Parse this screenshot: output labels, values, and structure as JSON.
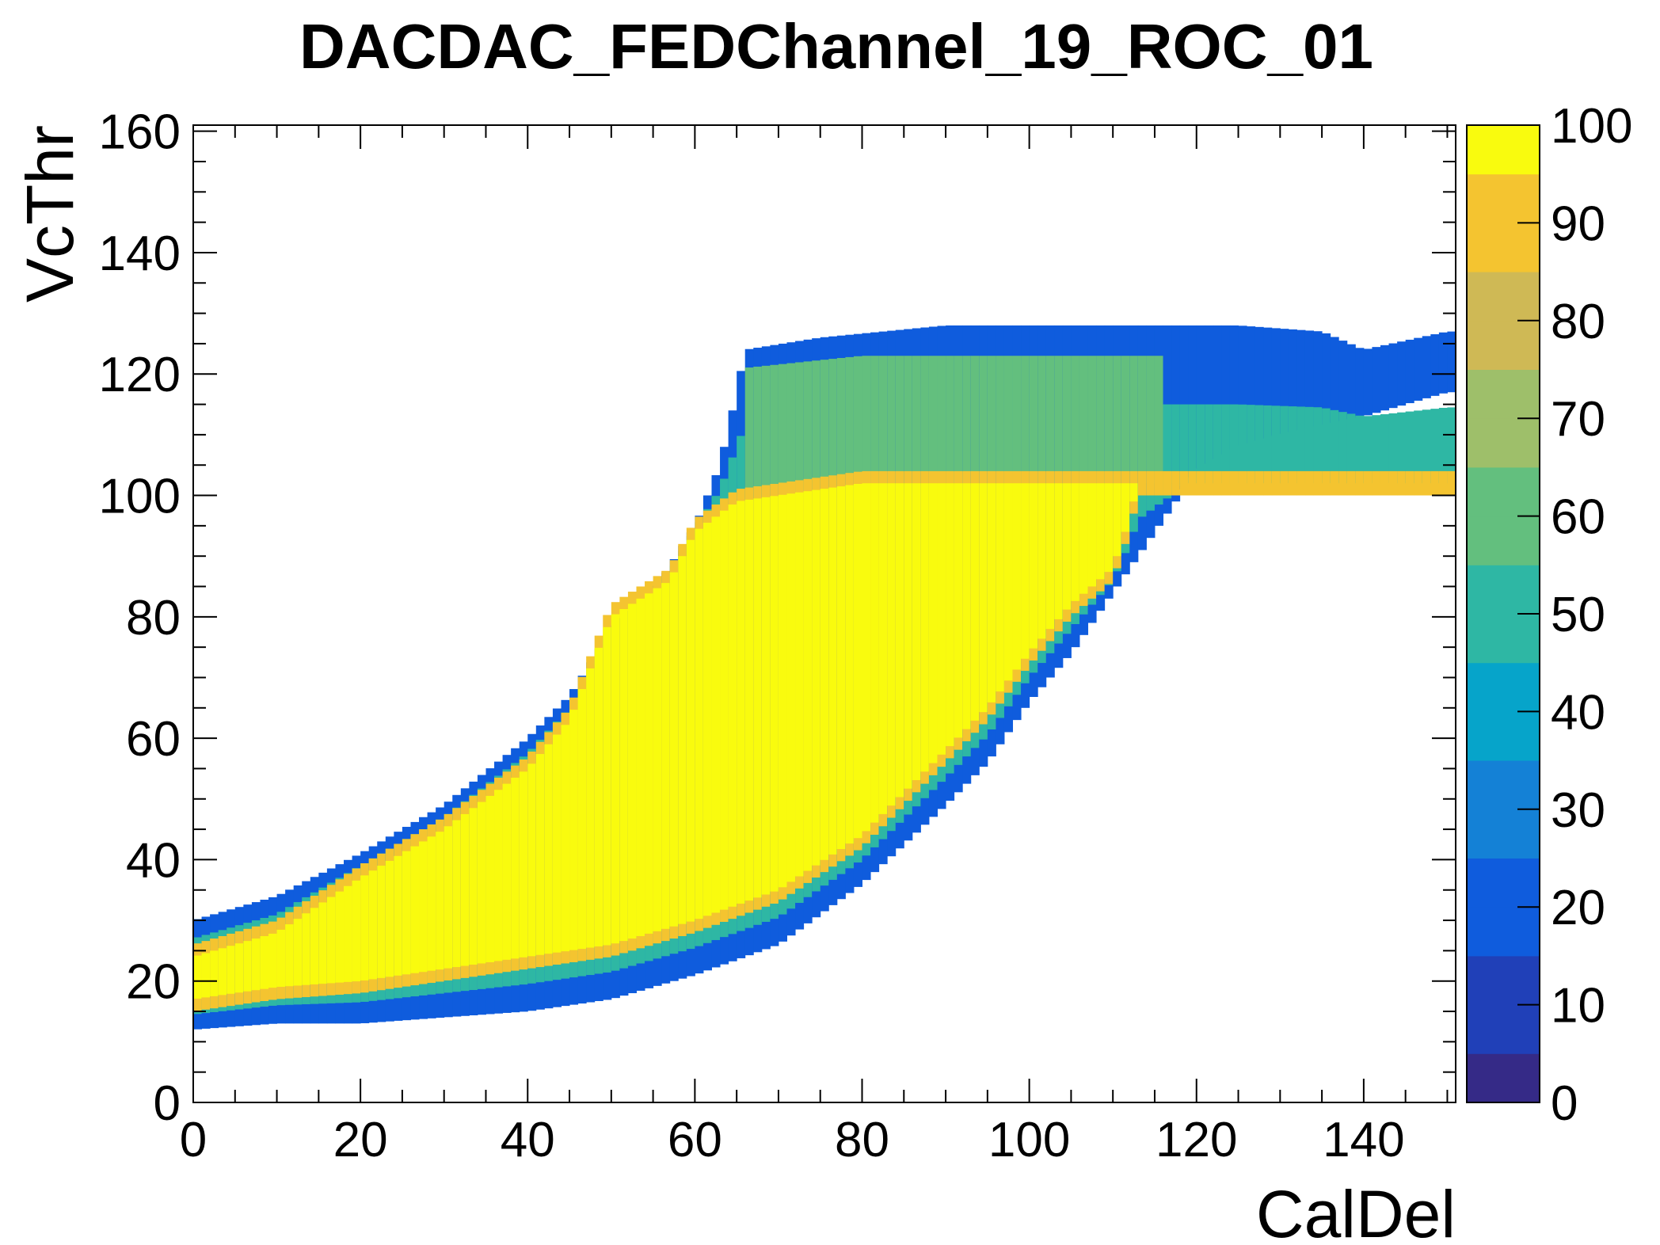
{
  "chart_data": {
    "type": "heatmap",
    "title": "DACDAC_FEDChannel_19_ROC_01",
    "xlabel": "CalDel",
    "ylabel": "VcThr",
    "xlim": [
      0,
      151
    ],
    "ylim": [
      0,
      161
    ],
    "x_ticks": [
      0,
      20,
      40,
      60,
      80,
      100,
      120,
      140
    ],
    "x_tick_labels": [
      "0",
      "20",
      "40",
      "60",
      "80",
      "100",
      "120",
      "140"
    ],
    "y_ticks": [
      0,
      20,
      40,
      60,
      80,
      100,
      120,
      140,
      160
    ],
    "y_tick_labels": [
      "0",
      "20",
      "40",
      "60",
      "80",
      "100",
      "120",
      "140",
      "160"
    ],
    "z_range": [
      0,
      100
    ],
    "z_ticks": [
      0,
      10,
      20,
      30,
      40,
      50,
      60,
      70,
      80,
      90,
      100
    ],
    "z_tick_labels": [
      "0",
      "10",
      "20",
      "30",
      "40",
      "50",
      "60",
      "70",
      "80",
      "90",
      "100"
    ],
    "grid": false,
    "colorbar": "right",
    "palette": [
      "#352a87",
      "#2040b8",
      "#0f5cdd",
      "#1481d6",
      "#06a4ca",
      "#2eb7a4",
      "#63bf7e",
      "#9ebf6a",
      "#cfb955",
      "#f4c430",
      "#f9fb0e"
    ],
    "regions": [
      {
        "name": "edge",
        "level": 18,
        "lower_edge": [
          [
            0,
            12
          ],
          [
            10,
            13
          ],
          [
            20,
            13
          ],
          [
            30,
            14
          ],
          [
            40,
            15
          ],
          [
            50,
            17
          ],
          [
            60,
            21
          ],
          [
            70,
            26
          ],
          [
            80,
            36
          ],
          [
            90,
            49
          ],
          [
            95,
            56
          ],
          [
            100,
            66
          ],
          [
            105,
            74
          ],
          [
            110,
            84
          ],
          [
            115,
            94
          ],
          [
            120,
            104
          ],
          [
            125,
            108
          ],
          [
            130,
            110
          ],
          [
            140,
            113
          ],
          [
            150,
            117
          ]
        ],
        "upper_edge": [
          [
            0,
            30
          ],
          [
            10,
            34
          ],
          [
            20,
            41
          ],
          [
            30,
            49
          ],
          [
            40,
            60
          ],
          [
            45,
            67
          ],
          [
            50,
            78
          ],
          [
            55,
            84
          ],
          [
            60,
            95
          ],
          [
            63,
            105
          ],
          [
            65,
            117
          ],
          [
            66,
            124
          ],
          [
            75,
            126
          ],
          [
            90,
            128
          ],
          [
            110,
            128
          ],
          [
            125,
            128
          ],
          [
            135,
            127
          ],
          [
            140,
            124
          ],
          [
            150,
            127
          ]
        ]
      },
      {
        "name": "plateau",
        "level": 64,
        "lower_edge": [
          [
            63,
            102
          ],
          [
            113,
            102
          ]
        ],
        "upper_edge": [
          [
            66,
            121
          ],
          [
            80,
            123
          ],
          [
            100,
            123
          ],
          [
            115,
            123
          ]
        ],
        "x_range": [
          66,
          116
        ]
      },
      {
        "name": "core",
        "level": 100,
        "lower_edge": [
          [
            0,
            17
          ],
          [
            10,
            19
          ],
          [
            20,
            20
          ],
          [
            30,
            22
          ],
          [
            40,
            24
          ],
          [
            50,
            26
          ],
          [
            60,
            30
          ],
          [
            70,
            35
          ],
          [
            80,
            44
          ],
          [
            90,
            58
          ],
          [
            95,
            65
          ],
          [
            100,
            74
          ],
          [
            105,
            82
          ],
          [
            110,
            88
          ],
          [
            112,
            96
          ],
          [
            113,
            102
          ]
        ],
        "upper_edge": [
          [
            0,
            24
          ],
          [
            10,
            28
          ],
          [
            20,
            37
          ],
          [
            30,
            45
          ],
          [
            40,
            55
          ],
          [
            45,
            63
          ],
          [
            50,
            80
          ],
          [
            57,
            86
          ],
          [
            60,
            94
          ],
          [
            65,
            99
          ],
          [
            80,
            102
          ],
          [
            100,
            102
          ],
          [
            113,
            102
          ]
        ]
      }
    ]
  }
}
